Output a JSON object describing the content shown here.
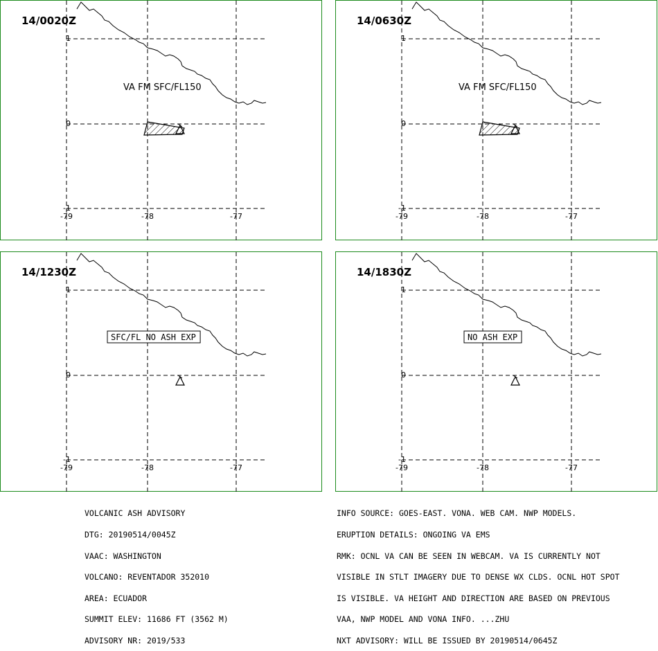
{
  "panels": [
    {
      "time": "14/0020Z",
      "label": "VA FM SFC/FL150",
      "label_boxed": false,
      "ash_polygon": true
    },
    {
      "time": "14/0630Z",
      "label": "VA FM SFC/FL150",
      "label_boxed": false,
      "ash_polygon": true
    },
    {
      "time": "14/1230Z",
      "label": "SFC/FL NO ASH EXP",
      "label_boxed": true,
      "ash_polygon": false
    },
    {
      "time": "14/1830Z",
      "label": "NO ASH EXP",
      "label_boxed": true,
      "ash_polygon": false
    }
  ],
  "axes": {
    "lat_labels": [
      "1",
      "0",
      "-1"
    ],
    "lon_labels": [
      "-79",
      "-78",
      "-77"
    ]
  },
  "footer_left": [
    "VOLCANIC ASH ADVISORY",
    "DTG: 20190514/0045Z",
    "VAAC: WASHINGTON",
    "VOLCANO: REVENTADOR 352010",
    "AREA: ECUADOR",
    "SUMMIT ELEV: 11686 FT (3562 M)",
    "ADVISORY NR: 2019/533"
  ],
  "footer_right": [
    "INFO SOURCE: GOES-EAST. VONA. WEB CAM. NWP MODELS.",
    "ERUPTION DETAILS: ONGOING VA EMS",
    "RMK: OCNL VA CAN BE SEEN IN WEBCAM. VA IS CURRENTLY NOT",
    "VISIBLE IN STLT IMAGERY DUE TO DENSE WX CLDS. OCNL HOT SPOT",
    "IS VISIBLE. VA HEIGHT AND DIRECTION ARE BASED ON PREVIOUS",
    "VAA, NWP MODEL AND VONA INFO. ...ZHU",
    "NXT ADVISORY: WILL BE ISSUED BY 20190514/0645Z"
  ],
  "colors": {
    "panel_border": "#1a8a1a",
    "lines": "#000000"
  }
}
